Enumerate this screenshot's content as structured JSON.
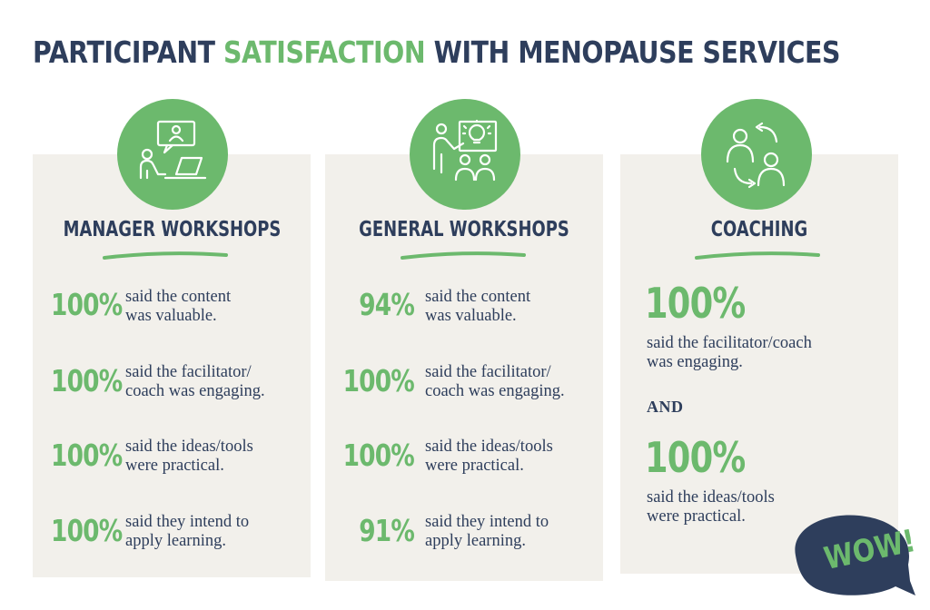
{
  "title": {
    "part1": "PARTICIPANT ",
    "accent": "SATISFACTION",
    "part2": " WITH MENOPAUSE SERVICES"
  },
  "colors": {
    "navy": "#2e3e5c",
    "green": "#6cb96d",
    "card": "#f2f0eb"
  },
  "columns": [
    {
      "title": "MANAGER WORKSHOPS",
      "icon": "online-meeting-icon",
      "stats": [
        {
          "value": "100%",
          "line1": "said the content",
          "line2": "was valuable."
        },
        {
          "value": "100%",
          "line1": "said the facilitator/",
          "line2": "coach was engaging."
        },
        {
          "value": "100%",
          "line1": "said the ideas/tools",
          "line2": "were practical."
        },
        {
          "value": "100%",
          "line1": "said they intend to",
          "line2": "apply learning."
        }
      ]
    },
    {
      "title": "GENERAL WORKSHOPS",
      "icon": "presentation-idea-icon",
      "stats": [
        {
          "value": "94%",
          "line1": "said the content",
          "line2": "was valuable."
        },
        {
          "value": "100%",
          "line1": "said the facilitator/",
          "line2": "coach was engaging."
        },
        {
          "value": "100%",
          "line1": "said the ideas/tools",
          "line2": "were practical."
        },
        {
          "value": "91%",
          "line1": "said they intend to",
          "line2": "apply learning."
        }
      ]
    },
    {
      "title": "COACHING",
      "icon": "people-exchange-icon",
      "stats": [
        {
          "value": "100%",
          "line1": "said the facilitator/coach",
          "line2": "was engaging."
        },
        {
          "value": "100%",
          "line1": "said the ideas/tools",
          "line2": "were practical."
        }
      ],
      "connector": "AND"
    }
  ],
  "wow": "WOW!"
}
